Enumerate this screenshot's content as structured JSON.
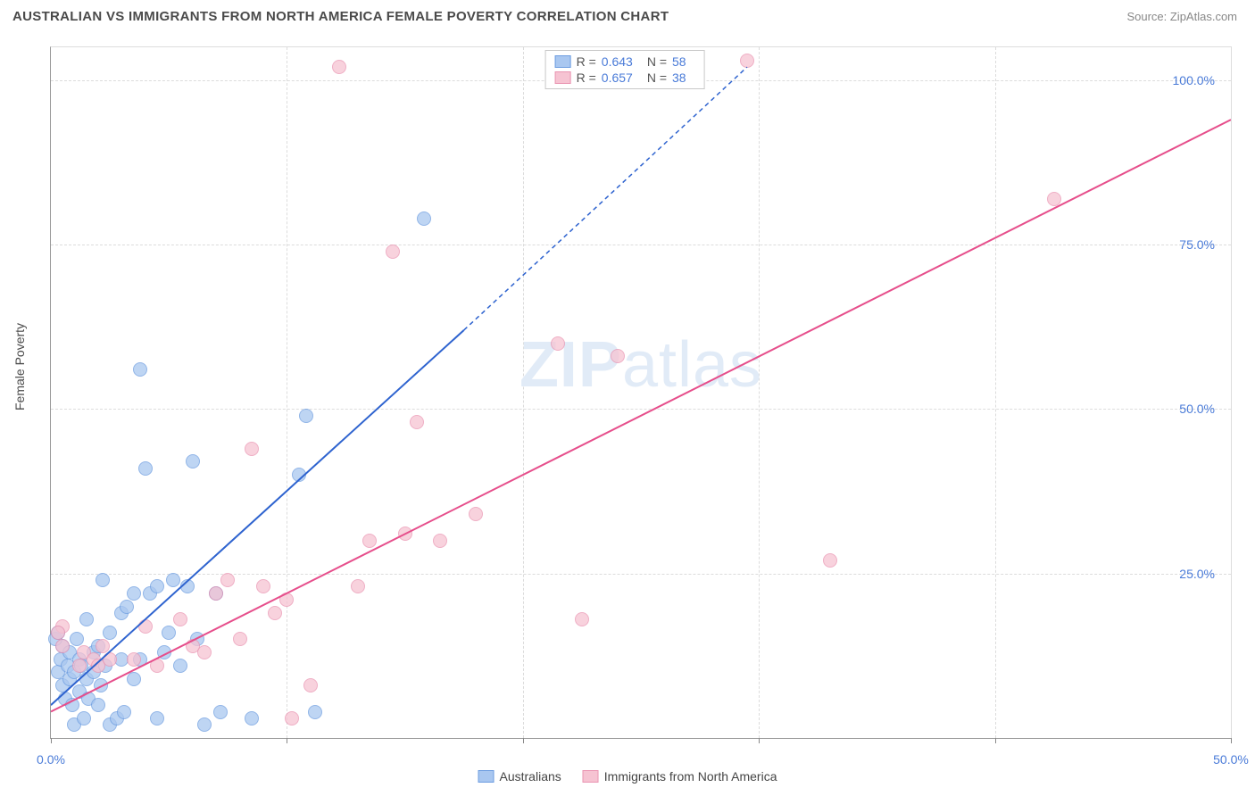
{
  "header": {
    "title": "AUSTRALIAN VS IMMIGRANTS FROM NORTH AMERICA FEMALE POVERTY CORRELATION CHART",
    "source_label": "Source: ZipAtlas.com"
  },
  "watermark": {
    "zip": "ZIP",
    "atlas": "atlas"
  },
  "chart": {
    "type": "scatter",
    "y_axis_label": "Female Poverty",
    "xlim": [
      0,
      50
    ],
    "ylim": [
      0,
      105
    ],
    "x_ticks": [
      0,
      10,
      20,
      30,
      40,
      50
    ],
    "y_ticks": [
      25,
      50,
      75,
      100
    ],
    "x_tick_labels": [
      "0.0%",
      "",
      "",
      "",
      "",
      "50.0%"
    ],
    "y_tick_labels": [
      "25.0%",
      "50.0%",
      "75.0%",
      "100.0%"
    ],
    "colors": {
      "blue_fill": "#a9c7f0",
      "blue_stroke": "#6d9de0",
      "blue_line": "#2e63cf",
      "pink_fill": "#f6c3d2",
      "pink_stroke": "#ea95b2",
      "pink_line": "#e64e8b",
      "grid": "#dcdcdc",
      "tick_text": "#4a7bd8"
    },
    "marker_radius": 8,
    "series": [
      {
        "name": "Australians",
        "color_key": "blue",
        "r_value": "0.643",
        "n_value": "58",
        "trend": {
          "x1": 0,
          "y1": 5,
          "x2": 17.5,
          "y2": 62,
          "dashed_to_x": 29.5,
          "dashed_to_y": 102
        },
        "points": [
          [
            0.3,
            10
          ],
          [
            0.4,
            12
          ],
          [
            0.5,
            8
          ],
          [
            0.5,
            14
          ],
          [
            0.7,
            11
          ],
          [
            0.8,
            9
          ],
          [
            0.8,
            13
          ],
          [
            1.0,
            10
          ],
          [
            1.1,
            15
          ],
          [
            1.2,
            7
          ],
          [
            1.2,
            12
          ],
          [
            1.3,
            11
          ],
          [
            1.5,
            9
          ],
          [
            1.5,
            18
          ],
          [
            1.6,
            6
          ],
          [
            1.8,
            13
          ],
          [
            1.8,
            10
          ],
          [
            2.0,
            14
          ],
          [
            2.1,
            8
          ],
          [
            2.2,
            24
          ],
          [
            2.3,
            11
          ],
          [
            2.5,
            2
          ],
          [
            2.5,
            16
          ],
          [
            2.8,
            3
          ],
          [
            3.0,
            19
          ],
          [
            3.0,
            12
          ],
          [
            3.2,
            20
          ],
          [
            3.5,
            9
          ],
          [
            3.5,
            22
          ],
          [
            3.8,
            56
          ],
          [
            4.0,
            41
          ],
          [
            4.2,
            22
          ],
          [
            4.5,
            3
          ],
          [
            4.5,
            23
          ],
          [
            4.8,
            13
          ],
          [
            5.0,
            16
          ],
          [
            5.2,
            24
          ],
          [
            5.5,
            11
          ],
          [
            5.8,
            23
          ],
          [
            6.0,
            42
          ],
          [
            6.2,
            15
          ],
          [
            6.5,
            2
          ],
          [
            7.0,
            22
          ],
          [
            7.2,
            4
          ],
          [
            8.5,
            3
          ],
          [
            10.5,
            40
          ],
          [
            10.8,
            49
          ],
          [
            11.2,
            4
          ],
          [
            15.8,
            79
          ],
          [
            0.2,
            15
          ],
          [
            0.3,
            16
          ],
          [
            0.6,
            6
          ],
          [
            0.9,
            5
          ],
          [
            1.0,
            2
          ],
          [
            1.4,
            3
          ],
          [
            2.0,
            5
          ],
          [
            3.1,
            4
          ],
          [
            3.8,
            12
          ]
        ]
      },
      {
        "name": "Immigrants from North America",
        "color_key": "pink",
        "r_value": "0.657",
        "n_value": "38",
        "trend": {
          "x1": 0,
          "y1": 4,
          "x2": 50,
          "y2": 94,
          "dashed_to_x": 50,
          "dashed_to_y": 94
        },
        "points": [
          [
            0.5,
            17
          ],
          [
            0.5,
            14
          ],
          [
            1.2,
            11
          ],
          [
            1.4,
            13
          ],
          [
            1.8,
            12
          ],
          [
            2.0,
            11
          ],
          [
            2.2,
            14
          ],
          [
            2.5,
            12
          ],
          [
            3.5,
            12
          ],
          [
            4.0,
            17
          ],
          [
            4.5,
            11
          ],
          [
            5.5,
            18
          ],
          [
            6.0,
            14
          ],
          [
            6.5,
            13
          ],
          [
            7.0,
            22
          ],
          [
            7.5,
            24
          ],
          [
            8.0,
            15
          ],
          [
            8.5,
            44
          ],
          [
            9.0,
            23
          ],
          [
            9.5,
            19
          ],
          [
            10.0,
            21
          ],
          [
            10.2,
            3
          ],
          [
            11.0,
            8
          ],
          [
            12.2,
            102
          ],
          [
            13.0,
            23
          ],
          [
            13.5,
            30
          ],
          [
            14.5,
            74
          ],
          [
            15.0,
            31
          ],
          [
            15.5,
            48
          ],
          [
            16.5,
            30
          ],
          [
            18.0,
            34
          ],
          [
            21.5,
            60
          ],
          [
            22.5,
            18
          ],
          [
            24.0,
            58
          ],
          [
            29.5,
            103
          ],
          [
            33.0,
            27
          ],
          [
            42.5,
            82
          ],
          [
            0.3,
            16
          ]
        ]
      }
    ],
    "legend_bottom": [
      {
        "label": "Australians",
        "color_key": "blue"
      },
      {
        "label": "Immigrants from North America",
        "color_key": "pink"
      }
    ]
  }
}
